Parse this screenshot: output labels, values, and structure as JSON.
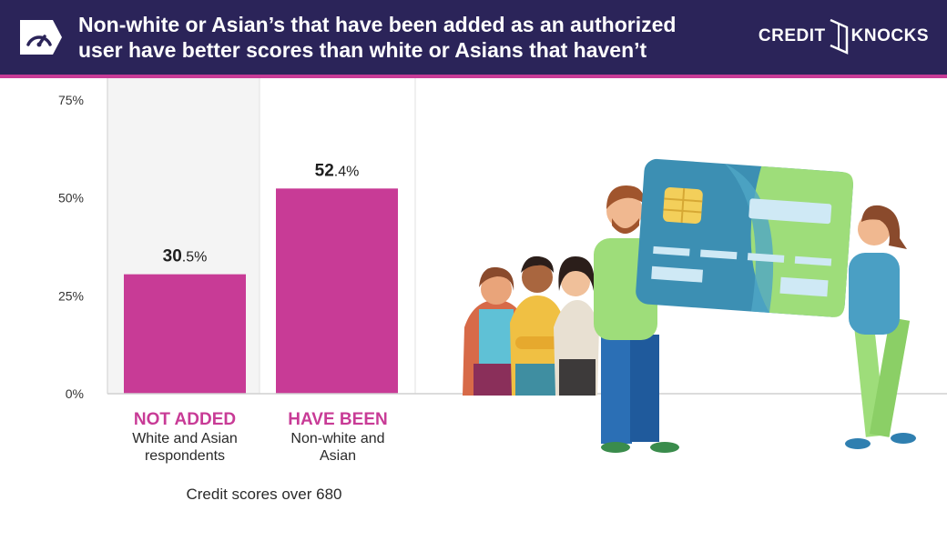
{
  "header": {
    "title_line1": "Non-white or Asian’s that have been added as an authorized",
    "title_line2": "user have better scores than white or Asians that haven’t",
    "gauge_icon": "speedometer-icon",
    "brand_left": "CREDIT",
    "brand_right": "KNOCKS"
  },
  "colors": {
    "header_bg": "#2b2459",
    "accent": "#c83b96",
    "bar": "#c83b96",
    "panel_shade": "#f4f4f4"
  },
  "chart_data": {
    "type": "bar",
    "categories": [
      "NOT ADDED",
      "HAVE BEEN"
    ],
    "category_sublabels": [
      "White and Asian respondents",
      "Non-white and Asian"
    ],
    "values": [
      30.5,
      52.4
    ],
    "data_labels": [
      {
        "whole": "30",
        "decimal": ".5%"
      },
      {
        "whole": "52",
        "decimal": ".4%"
      }
    ],
    "xlabel": "Credit scores over 680",
    "ylabel": "",
    "ylim": [
      0,
      75
    ],
    "yticks": [
      {
        "value": 0,
        "label": "0%"
      },
      {
        "value": 25,
        "label": "25%"
      },
      {
        "value": 50,
        "label": "50%"
      },
      {
        "value": 75,
        "label": "75%"
      }
    ],
    "grid": false,
    "legend": "none"
  },
  "illustration": {
    "icon": "people-holding-credit-card-icon"
  }
}
